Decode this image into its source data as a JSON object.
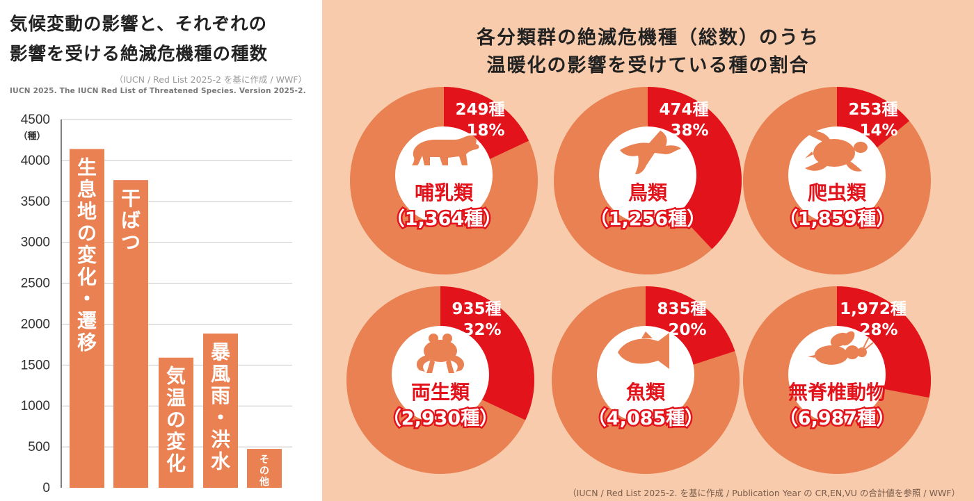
{
  "left_panel": {
    "title_line1": "気候変動の影響と、それぞれの",
    "title_line2": "影響を受ける絶滅危機種の種数",
    "source_jp": "（IUCN / Red List 2025-2 を基に作成 / WWF）",
    "source_en": "IUCN 2025. The IUCN Red List of Threatened Species. Version 2025-2."
  },
  "right_panel": {
    "title_line1": "各分類群の絶滅危機種（総数）のうち",
    "title_line2": "温暖化の影響を受けている種の割合",
    "source": "（IUCN / Red List 2025-2. を基に作成 / Publication Year の CR,EN,VU の合計値を参照 / WWF）"
  },
  "colors": {
    "bar": "#e98153",
    "pie_base": "#e98153",
    "pie_highlight": "#e3131b",
    "center_circle": "#ffffff",
    "label_text": "#e3131b",
    "silhouette": "#e98153",
    "right_background": "#f7cbab"
  },
  "chart_data": [
    {
      "type": "bar",
      "categories": [
        "生息地の変化・遷移",
        "干ばつ",
        "気温の変化",
        "暴風雨・洪水",
        "その他"
      ],
      "values": [
        4140,
        3760,
        1590,
        1885,
        475
      ],
      "ylabel": "（種）",
      "ylim": [
        0,
        4500
      ],
      "yticks": [
        "0",
        "500",
        "1000",
        "1500",
        "2000",
        "2500",
        "3000",
        "3500",
        "4000",
        "4500"
      ],
      "grid": true
    },
    {
      "type": "pie",
      "charts": [
        {
          "group": "哺乳類",
          "total_label": "（1,364種）",
          "affected_label": "249種",
          "percent_label": "18%",
          "fraction": 0.18,
          "icon": "polar-bear-icon"
        },
        {
          "group": "鳥類",
          "total_label": "（1,256種）",
          "affected_label": "474種",
          "percent_label": "38%",
          "fraction": 0.38,
          "icon": "bird-icon"
        },
        {
          "group": "爬虫類",
          "total_label": "（1,859種）",
          "affected_label": "253種",
          "percent_label": "14%",
          "fraction": 0.14,
          "icon": "sea-turtle-icon"
        },
        {
          "group": "両生類",
          "total_label": "（2,930種）",
          "affected_label": "935種",
          "percent_label": "32%",
          "fraction": 0.32,
          "icon": "frog-icon"
        },
        {
          "group": "魚類",
          "total_label": "（4,085種）",
          "affected_label": "835種",
          "percent_label": "20%",
          "fraction": 0.2,
          "icon": "fish-icon"
        },
        {
          "group": "無脊椎動物",
          "total_label": "（6,987種）",
          "affected_label": "1,972種",
          "percent_label": "28%",
          "fraction": 0.28,
          "icon": "bee-icon"
        }
      ]
    }
  ]
}
